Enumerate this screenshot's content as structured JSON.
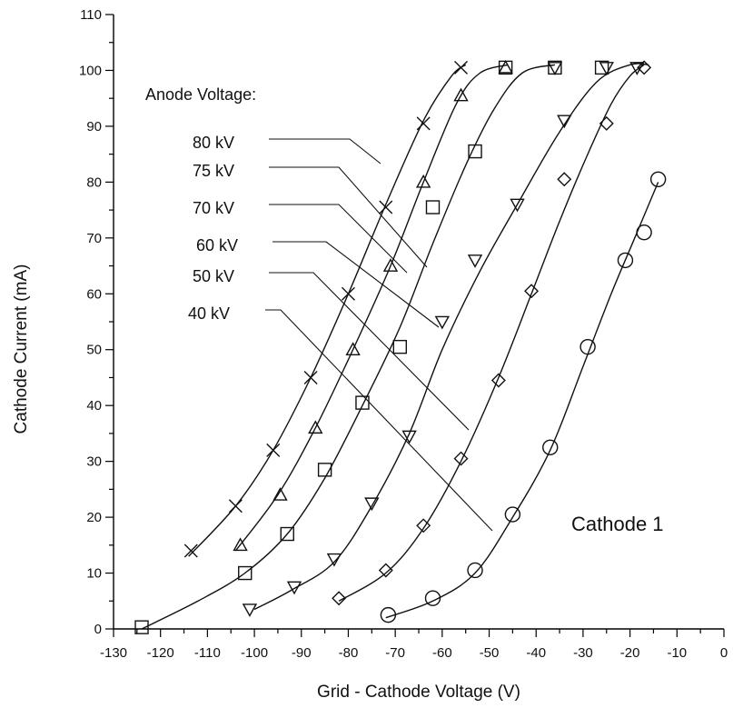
{
  "chart_data": {
    "type": "scatter",
    "title": "",
    "xlabel": "Grid - Cathode Voltage (V)",
    "ylabel": "Cathode Current (mA)",
    "xlim": [
      -130,
      0
    ],
    "ylim": [
      0,
      110
    ],
    "x_ticks": [
      -130,
      -120,
      -110,
      -100,
      -90,
      -80,
      -70,
      -60,
      -50,
      -40,
      -30,
      -20,
      -10,
      0
    ],
    "y_ticks": [
      0,
      10,
      20,
      30,
      40,
      50,
      60,
      70,
      80,
      90,
      100,
      110
    ],
    "grid": false,
    "legend_title": "Anode Voltage:",
    "annotation": "Cathode 1",
    "series": [
      {
        "name": "80 kV",
        "marker": "x",
        "points": [
          [
            -113.5,
            14
          ],
          [
            -104,
            22
          ],
          [
            -96,
            32
          ],
          [
            -88,
            45
          ],
          [
            -80,
            60
          ],
          [
            -72,
            75.5
          ],
          [
            -64,
            90.5
          ],
          [
            -56,
            100.5
          ]
        ],
        "curve": [
          [
            -114,
            13
          ],
          [
            -104,
            22
          ],
          [
            -96,
            32
          ],
          [
            -88,
            45
          ],
          [
            -80,
            60
          ],
          [
            -72,
            76
          ],
          [
            -64,
            91
          ],
          [
            -58,
            99
          ],
          [
            -55,
            101
          ]
        ]
      },
      {
        "name": "75 kV",
        "marker": "triangle-up",
        "points": [
          [
            -103,
            15
          ],
          [
            -94.5,
            24
          ],
          [
            -87,
            36
          ],
          [
            -79,
            50
          ],
          [
            -71,
            65
          ],
          [
            -64,
            80
          ],
          [
            -56,
            95.5
          ],
          [
            -46.5,
            100.5
          ]
        ],
        "curve": [
          [
            -104,
            14
          ],
          [
            -95,
            24
          ],
          [
            -87,
            36
          ],
          [
            -79,
            50
          ],
          [
            -71,
            65
          ],
          [
            -64,
            80
          ],
          [
            -57,
            94
          ],
          [
            -52,
            99.5
          ],
          [
            -46,
            101
          ]
        ]
      },
      {
        "name": "70 kV",
        "marker": "square",
        "points": [
          [
            -124,
            0.3
          ],
          [
            -102,
            10
          ],
          [
            -93,
            17
          ],
          [
            -85,
            28.5
          ],
          [
            -77,
            40.5
          ],
          [
            -69,
            50.5
          ],
          [
            -62,
            75.5
          ],
          [
            -53,
            85.5
          ],
          [
            -46.5,
            100.5
          ],
          [
            -36,
            100.5
          ],
          [
            -26,
            100.5
          ]
        ],
        "curve": [
          [
            -124,
            0
          ],
          [
            -112,
            5
          ],
          [
            -102,
            10
          ],
          [
            -93,
            17
          ],
          [
            -85,
            27
          ],
          [
            -77,
            40
          ],
          [
            -69,
            54
          ],
          [
            -62,
            69
          ],
          [
            -55,
            83
          ],
          [
            -49,
            93
          ],
          [
            -43,
            99.5
          ],
          [
            -36,
            101
          ]
        ]
      },
      {
        "name": "60 kV",
        "marker": "triangle-down",
        "points": [
          [
            -101,
            3.5
          ],
          [
            -91.5,
            7.5
          ],
          [
            -83,
            12.5
          ],
          [
            -75,
            22.5
          ],
          [
            -67,
            34.5
          ],
          [
            -60,
            55
          ],
          [
            -53,
            66
          ],
          [
            -44,
            76
          ],
          [
            -34,
            91
          ],
          [
            -25,
            100.5
          ],
          [
            -18.5,
            100.5
          ],
          [
            -36,
            100.5
          ]
        ],
        "curve": [
          [
            -100,
            3.5
          ],
          [
            -92,
            7
          ],
          [
            -83,
            12
          ],
          [
            -75,
            22
          ],
          [
            -67,
            35
          ],
          [
            -60,
            50
          ],
          [
            -52,
            64
          ],
          [
            -44,
            76
          ],
          [
            -35,
            89
          ],
          [
            -27,
            98
          ],
          [
            -20,
            101
          ],
          [
            -16,
            101
          ]
        ]
      },
      {
        "name": "50 kV",
        "marker": "diamond",
        "points": [
          [
            -82,
            5.5
          ],
          [
            -72,
            10.5
          ],
          [
            -64,
            18.5
          ],
          [
            -56,
            30.5
          ],
          [
            -48,
            44.5
          ],
          [
            -41,
            60.5
          ],
          [
            -34,
            80.5
          ],
          [
            -25,
            90.5
          ],
          [
            -17,
            100.5
          ]
        ],
        "curve": [
          [
            -82,
            5
          ],
          [
            -72,
            10
          ],
          [
            -64,
            18
          ],
          [
            -56,
            30
          ],
          [
            -48,
            45
          ],
          [
            -41,
            60
          ],
          [
            -35,
            73
          ],
          [
            -29,
            85
          ],
          [
            -24,
            94
          ],
          [
            -20,
            99
          ],
          [
            -17,
            101
          ]
        ]
      },
      {
        "name": "40 kV",
        "marker": "circle",
        "points": [
          [
            -71.5,
            2.5
          ],
          [
            -62,
            5.5
          ],
          [
            -53,
            10.5
          ],
          [
            -45,
            20.5
          ],
          [
            -37,
            32.5
          ],
          [
            -29,
            50.5
          ],
          [
            -21,
            66
          ],
          [
            -17,
            71
          ],
          [
            -14,
            80.5
          ]
        ],
        "curve": [
          [
            -72,
            2
          ],
          [
            -62,
            5
          ],
          [
            -53,
            10
          ],
          [
            -45,
            20
          ],
          [
            -37,
            32
          ],
          [
            -30,
            47
          ],
          [
            -24,
            60
          ],
          [
            -19,
            70
          ],
          [
            -14,
            80
          ]
        ]
      }
    ]
  }
}
